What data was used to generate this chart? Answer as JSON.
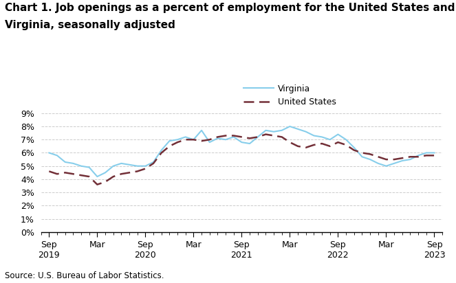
{
  "title_line1": "Chart 1. Job openings as a percent of employment for the United States and",
  "title_line2": "Virginia, seasonally adjusted",
  "source": "Source: U.S. Bureau of Labor Statistics.",
  "legend_virginia": "Virginia",
  "legend_us": "United States",
  "virginia_color": "#87CEEB",
  "us_color": "#722F37",
  "ylim": [
    0,
    0.09
  ],
  "yticks": [
    0,
    0.01,
    0.02,
    0.03,
    0.04,
    0.05,
    0.06,
    0.07,
    0.08,
    0.09
  ],
  "ytick_labels": [
    "0%",
    "1%",
    "2%",
    "3%",
    "4%",
    "5%",
    "6%",
    "7%",
    "8%",
    "9%"
  ],
  "xtick_positions": [
    0,
    6,
    12,
    18,
    24,
    30,
    36,
    42,
    48
  ],
  "virginia_data": [
    0.06,
    0.058,
    0.053,
    0.052,
    0.05,
    0.049,
    0.042,
    0.045,
    0.05,
    0.052,
    0.051,
    0.05,
    0.05,
    0.053,
    0.062,
    0.069,
    0.07,
    0.072,
    0.07,
    0.077,
    0.068,
    0.071,
    0.07,
    0.072,
    0.068,
    0.067,
    0.072,
    0.077,
    0.076,
    0.077,
    0.08,
    0.078,
    0.076,
    0.073,
    0.072,
    0.07,
    0.074,
    0.07,
    0.064,
    0.057,
    0.055,
    0.052,
    0.05,
    0.052,
    0.054,
    0.055,
    0.058,
    0.06,
    0.06
  ],
  "us_data": [
    0.046,
    0.044,
    0.045,
    0.044,
    0.043,
    0.042,
    0.036,
    0.038,
    0.042,
    0.044,
    0.045,
    0.046,
    0.048,
    0.052,
    0.06,
    0.065,
    0.068,
    0.07,
    0.07,
    0.069,
    0.07,
    0.072,
    0.073,
    0.073,
    0.072,
    0.071,
    0.072,
    0.074,
    0.073,
    0.072,
    0.068,
    0.065,
    0.064,
    0.066,
    0.067,
    0.065,
    0.068,
    0.066,
    0.062,
    0.06,
    0.059,
    0.057,
    0.055,
    0.055,
    0.056,
    0.057,
    0.057,
    0.058,
    0.058
  ],
  "background_color": "#ffffff",
  "grid_color": "#cccccc",
  "title_fontsize": 11,
  "axis_fontsize": 9,
  "legend_fontsize": 9,
  "source_fontsize": 8.5
}
